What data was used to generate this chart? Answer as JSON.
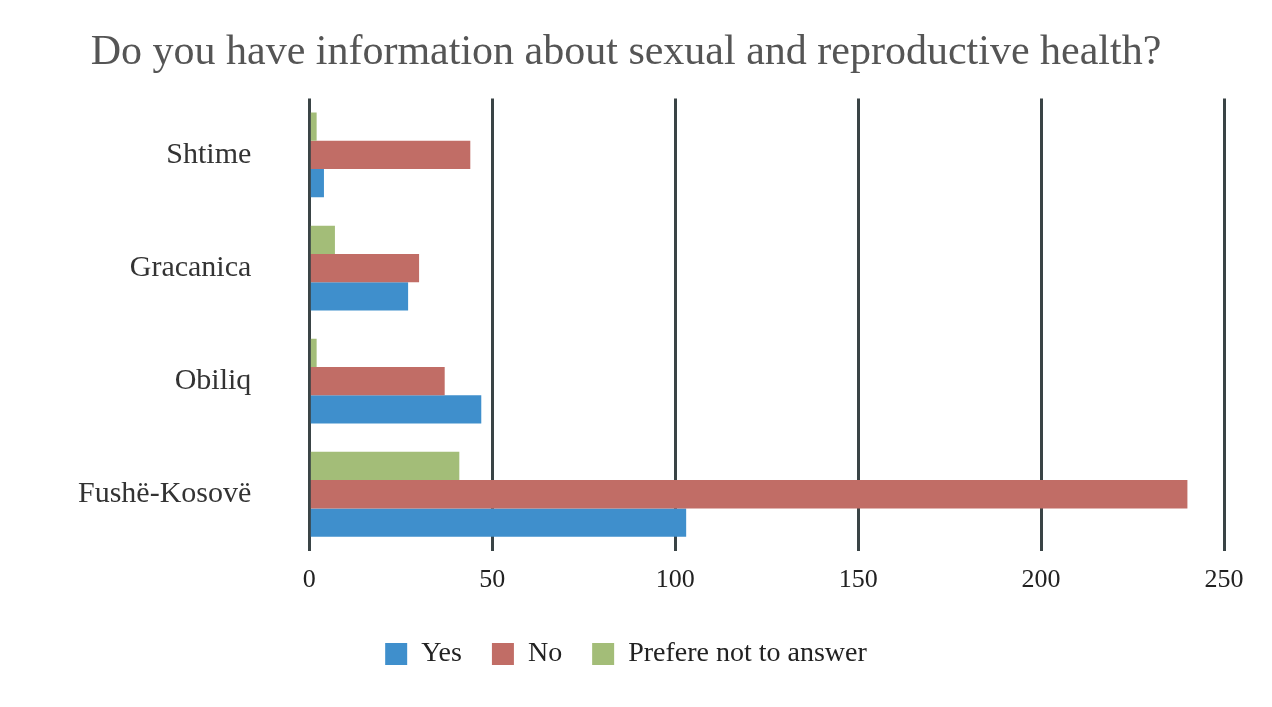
{
  "chart_data": {
    "type": "bar",
    "orientation": "horizontal",
    "title": "Do you have information about sexual and reproductive health?",
    "categories": [
      "Shtime",
      "Gracanica",
      "Obiliq",
      "Fushë-Kosovë"
    ],
    "series": [
      {
        "name": "Yes",
        "color": "#3f8fcc",
        "values": [
          4,
          27,
          47,
          103
        ]
      },
      {
        "name": "No",
        "color": "#c16d66",
        "values": [
          44,
          30,
          37,
          240
        ]
      },
      {
        "name": "Prefere not to answer",
        "color": "#a3bd78",
        "values": [
          2,
          7,
          2,
          41
        ]
      }
    ],
    "xlim": [
      0,
      250
    ],
    "xticks": [
      0,
      50,
      100,
      150,
      200,
      250
    ],
    "grid": "x",
    "legend": "bottom"
  }
}
